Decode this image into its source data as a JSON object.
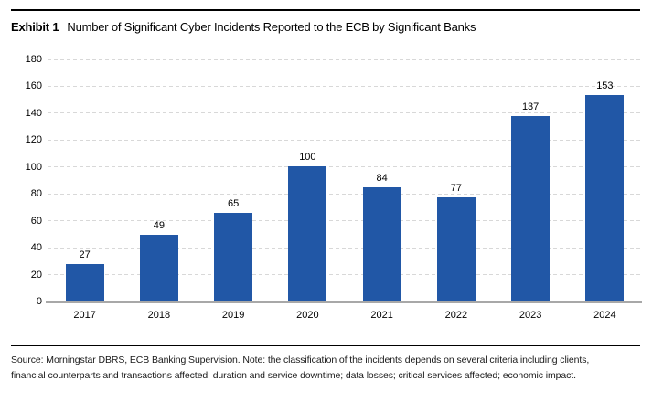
{
  "header": {
    "exhibit_label": "Exhibit 1",
    "title": "Number of Significant Cyber Incidents Reported to the ECB by Significant Banks"
  },
  "chart_data": {
    "type": "bar",
    "title": "Number of Significant Cyber Incidents Reported to the ECB by Significant Banks",
    "categories": [
      "2017",
      "2018",
      "2019",
      "2020",
      "2021",
      "2022",
      "2023",
      "2024"
    ],
    "values": [
      27,
      49,
      65,
      100,
      84,
      77,
      137,
      153
    ],
    "xlabel": "",
    "ylabel": "",
    "ylim": [
      0,
      180
    ],
    "yticks": [
      0,
      20,
      40,
      60,
      80,
      100,
      120,
      140,
      160,
      180
    ],
    "grid": "horizontal-dashed",
    "legend": "none",
    "bar_color": "#2157a6",
    "data_labels": true
  },
  "footer": {
    "note_line1": "Source: Morningstar DBRS, ECB Banking Supervision. Note: the classification of the incidents depends on several criteria including clients,",
    "note_line2": "financial counterparts and transactions affected; duration and service downtime; data losses; critical services affected; economic impact."
  },
  "colors": {
    "bar": "#2157a6",
    "gridline": "#d8d8d8",
    "axis_line": "#a8a8a8",
    "rule": "#000000",
    "text": "#000000"
  }
}
